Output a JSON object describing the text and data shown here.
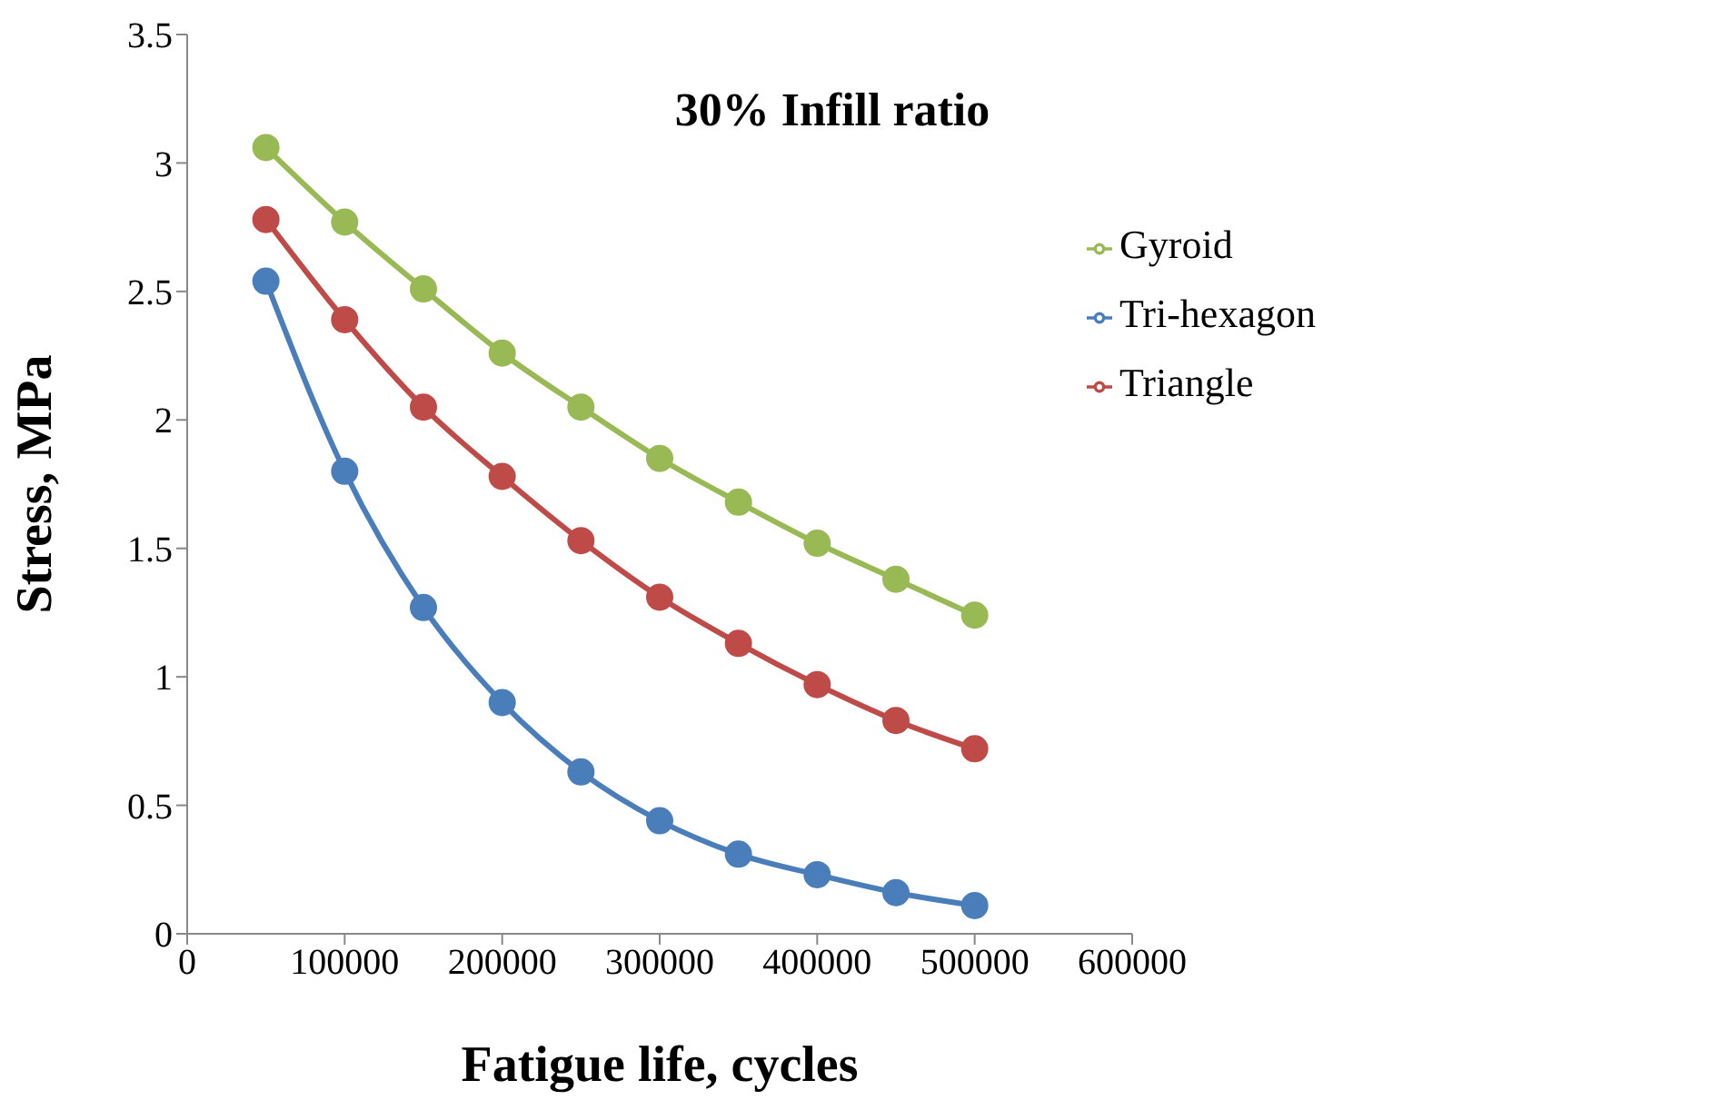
{
  "chart_data": {
    "type": "line",
    "title": "30% Infill ratio",
    "xlabel": "Fatigue life, cycles",
    "ylabel": "Stress, MPa",
    "x": [
      50000,
      100000,
      150000,
      200000,
      250000,
      300000,
      350000,
      400000,
      450000,
      500000
    ],
    "series": [
      {
        "name": "Tri-hexagon",
        "color": "#4a7ebb",
        "values": [
          2.54,
          1.8,
          1.27,
          0.9,
          0.63,
          0.44,
          0.31,
          0.23,
          0.16,
          0.11
        ]
      },
      {
        "name": "Triangle",
        "color": "#be4b48",
        "values": [
          2.78,
          2.39,
          2.05,
          1.78,
          1.53,
          1.31,
          1.13,
          0.97,
          0.83,
          0.72
        ]
      },
      {
        "name": "Gyroid",
        "color": "#98b954",
        "values": [
          3.06,
          2.77,
          2.51,
          2.26,
          2.05,
          1.85,
          1.68,
          1.52,
          1.38,
          1.24
        ]
      }
    ],
    "xlim": [
      0,
      600000
    ],
    "xticks": [
      0,
      100000,
      200000,
      300000,
      400000,
      500000,
      600000
    ],
    "ylim": [
      0,
      3.5
    ],
    "yticks": [
      0,
      0.5,
      1,
      1.5,
      2,
      2.5,
      3,
      3.5
    ],
    "grid": false,
    "legend": "top right",
    "marker": "circle",
    "line_style": "solid"
  }
}
